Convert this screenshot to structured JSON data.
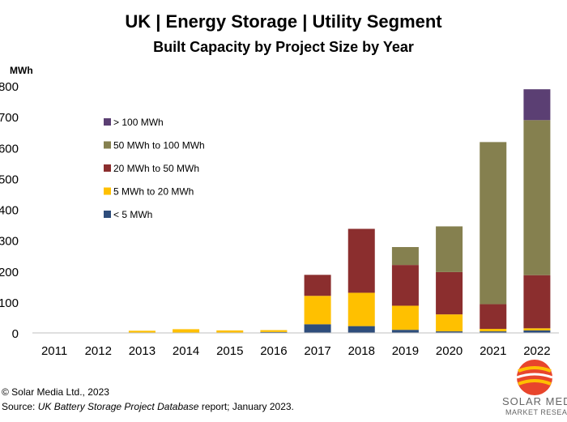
{
  "chart_data": {
    "type": "bar",
    "stacked": true,
    "title": "UK | Energy Storage | Utility Segment",
    "subtitle": "Built Capacity by Project Size by Year",
    "ylabel": "MWh",
    "xlabel": "",
    "ylim": [
      0,
      800
    ],
    "yticks": [
      0,
      100,
      200,
      300,
      400,
      500,
      600,
      700,
      800
    ],
    "yticklabels": [
      "0",
      "100",
      "200",
      "300",
      "400",
      "500",
      "600",
      "700",
      "800"
    ],
    "grid": false,
    "legend_position": "upper-left",
    "categories": [
      "2011",
      "2012",
      "2013",
      "2014",
      "2015",
      "2016",
      "2017",
      "2018",
      "2019",
      "2020",
      "2021",
      "2022"
    ],
    "series": [
      {
        "name": "< 5 MWh",
        "color": "#2E4D7B",
        "values": [
          0,
          0,
          0,
          0,
          0,
          3,
          28,
          22,
          10,
          5,
          5,
          8
        ]
      },
      {
        "name": "5 MWh to 20 MWh",
        "color": "#FFC000",
        "values": [
          0,
          0,
          7,
          12,
          8,
          6,
          92,
          108,
          78,
          55,
          8,
          7
        ]
      },
      {
        "name": "20 MWh to 50 MWh",
        "color": "#8B2E2E",
        "values": [
          0,
          0,
          0,
          0,
          0,
          0,
          68,
          207,
          132,
          137,
          80,
          172
        ]
      },
      {
        "name": "50 MWh to 100 MWh",
        "color": "#85804F",
        "values": [
          0,
          0,
          0,
          0,
          0,
          0,
          0,
          0,
          58,
          148,
          525,
          502
        ]
      },
      {
        "name": "> 100 MWh",
        "color": "#5B3F73",
        "values": [
          0,
          0,
          0,
          0,
          0,
          0,
          0,
          0,
          0,
          0,
          0,
          100
        ]
      }
    ]
  },
  "footer": {
    "copyright": "© Solar Media Ltd., 2023",
    "source_prefix": "Source: ",
    "source_italic": "UK Battery Storage Project Database",
    "source_suffix": " report; January 2023."
  },
  "logo": {
    "line1": "SOLAR MEDIA",
    "line2": "MARKET RESEARCH"
  }
}
